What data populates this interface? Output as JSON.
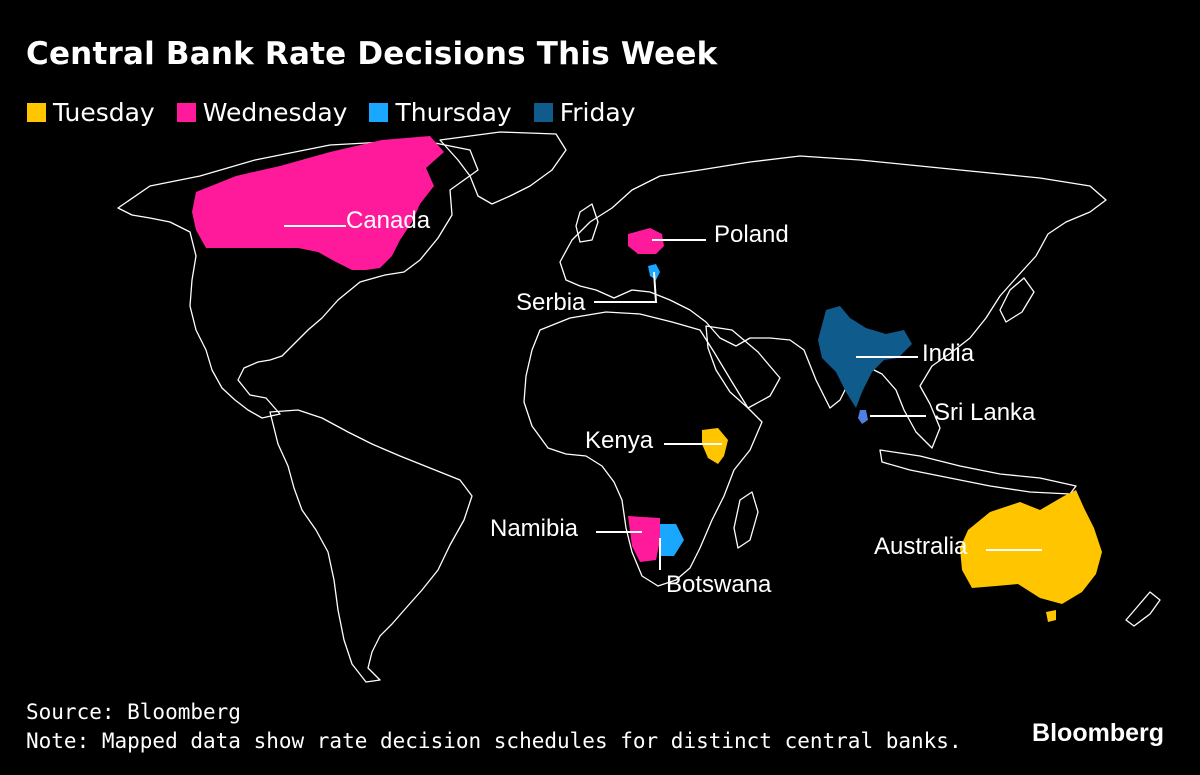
{
  "title": "Central Bank Rate Decisions This Week",
  "legend": [
    {
      "label": "Tuesday",
      "color": "#ffc600"
    },
    {
      "label": "Wednesday",
      "color": "#ff1a9c"
    },
    {
      "label": "Thursday",
      "color": "#1aa7ff"
    },
    {
      "label": "Friday",
      "color": "#0f5b8c"
    }
  ],
  "countries": {
    "canada": {
      "label": "Canada",
      "day": "Wednesday"
    },
    "poland": {
      "label": "Poland",
      "day": "Wednesday"
    },
    "serbia": {
      "label": "Serbia",
      "day": "Thursday"
    },
    "india": {
      "label": "India",
      "day": "Friday"
    },
    "sri_lanka": {
      "label": "Sri Lanka",
      "day": "Friday"
    },
    "kenya": {
      "label": "Kenya",
      "day": "Tuesday"
    },
    "namibia": {
      "label": "Namibia",
      "day": "Wednesday"
    },
    "botswana": {
      "label": "Botswana",
      "day": "Thursday"
    },
    "australia": {
      "label": "Australia",
      "day": "Tuesday"
    }
  },
  "footer": {
    "source": "Source: Bloomberg",
    "note": "Note: Mapped data show rate decision schedules for distinct central banks."
  },
  "brand": "Bloomberg"
}
